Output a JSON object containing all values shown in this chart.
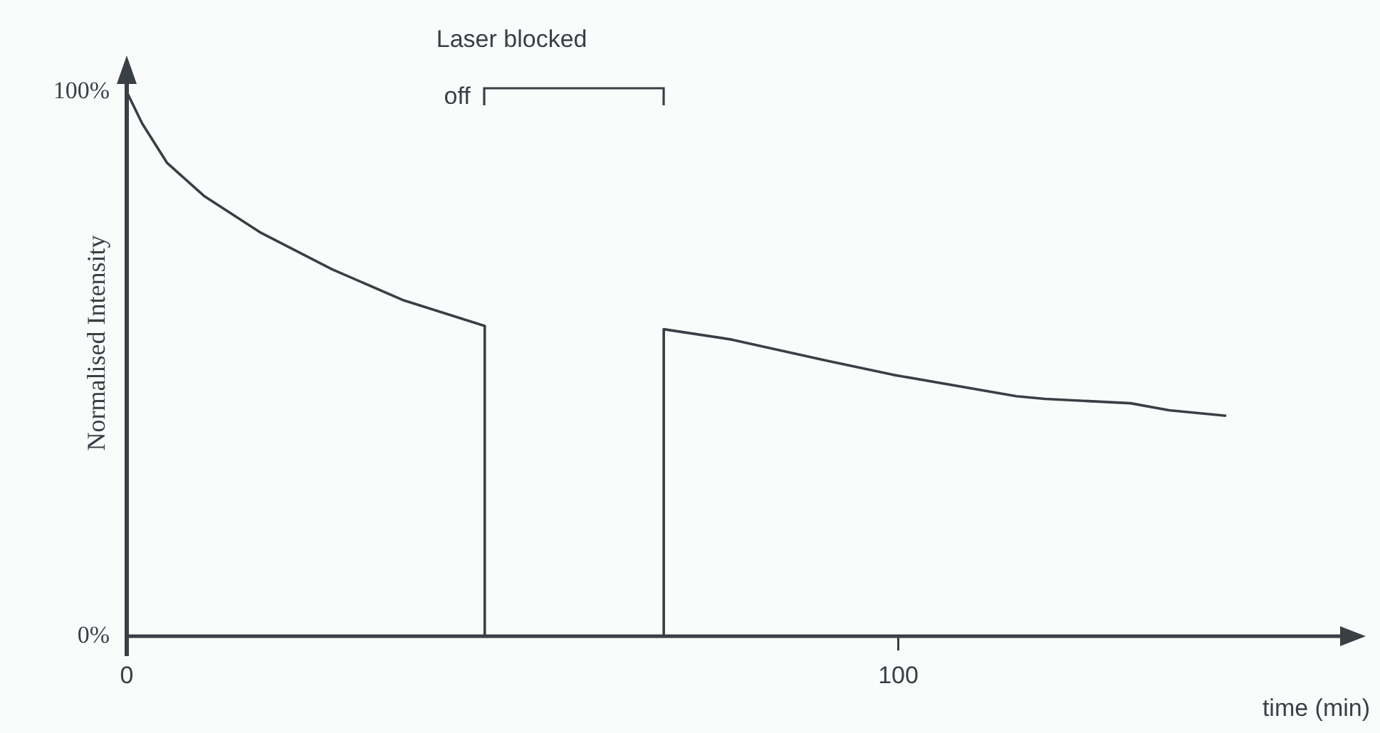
{
  "chart_data": {
    "type": "line",
    "ylabel": "Normalised Intensity",
    "xlabel": "time (min)",
    "series": [
      {
        "color": "#3a3f45",
        "x": [
          0,
          2.0,
          5.2,
          10.0,
          17.4,
          26.6,
          35.9,
          46.4,
          46.4,
          69.6,
          69.6,
          78.4,
          90.8,
          99.4,
          115.3,
          119.0,
          130.1,
          135.1,
          142.5
        ],
        "values": [
          100,
          94.2,
          87.0,
          80.9,
          74.1,
          67.4,
          61.7,
          57.0,
          0,
          0,
          56.4,
          54.5,
          50.6,
          48.0,
          44.1,
          43.6,
          42.8,
          41.5,
          40.5
        ]
      }
    ],
    "annotations": [
      "Laser blocked off"
    ],
    "xlim": [
      0,
      158
    ],
    "ylim": [
      0,
      102.5
    ],
    "xticks": [
      0,
      100
    ],
    "yticks": [
      {
        "value": 0,
        "label": "0%"
      },
      {
        "value": 100,
        "label": "100%"
      }
    ],
    "grid": false,
    "legend": false,
    "marker": "none",
    "line_style": "solid"
  }
}
